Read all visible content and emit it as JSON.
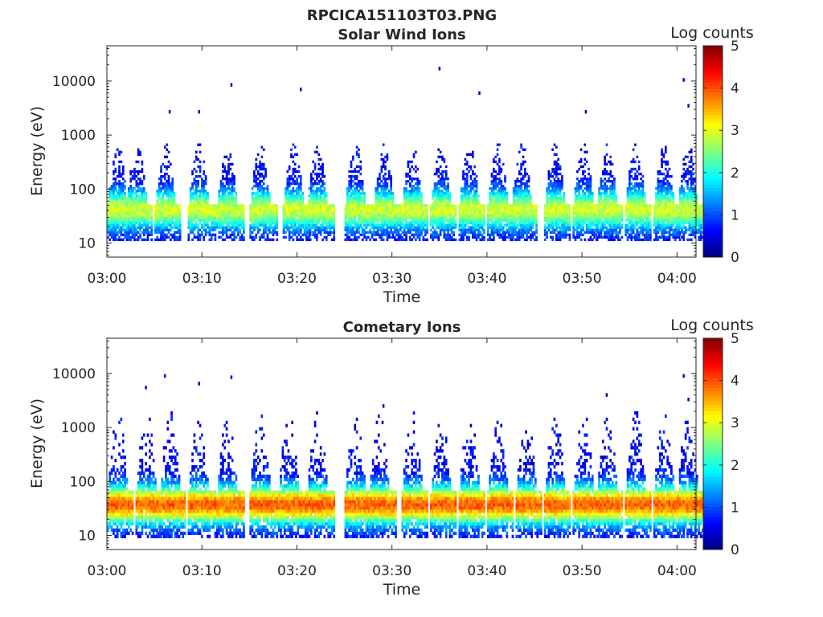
{
  "figure": {
    "title": "RPCICA151103T03.PNG"
  },
  "colors": {
    "colormap": "jet",
    "axis": "#262626",
    "background": "#ffffff"
  },
  "chart_data": [
    {
      "type": "heatmap",
      "title": "Solar Wind Ions",
      "xlabel": "Time",
      "ylabel": "Energy (eV)",
      "y_scale": "log",
      "ylim": [
        5.5,
        45000
      ],
      "xlim": [
        "03:00",
        "04:02"
      ],
      "x_ticks": [
        "03:00",
        "03:10",
        "03:20",
        "03:30",
        "03:40",
        "03:50",
        "04:00"
      ],
      "y_ticks": [
        {
          "value": 10,
          "label": "10"
        },
        {
          "value": 100,
          "label": "100"
        },
        {
          "value": 1000,
          "label": "1000"
        },
        {
          "value": 10000,
          "label": "10000"
        }
      ],
      "colorbar": {
        "label": "Log counts",
        "min": 0,
        "max": 5,
        "ticks": [
          "0",
          "1",
          "2",
          "3",
          "4",
          "5"
        ]
      },
      "sweep_period_minutes": 2.8,
      "sweep_starts_minutes": [
        0.0,
        2.0,
        5.0,
        8.5,
        11.5,
        15.0,
        18.5,
        21.0,
        25.0,
        28.0,
        31.0,
        34.0,
        37.0,
        40.0,
        42.5,
        46.0,
        49.0,
        51.5,
        54.5,
        57.5,
        60.0
      ],
      "sweep_energy_range_eV": [
        11,
        700
      ],
      "peak_energy_eV": 40,
      "peak_log_counts": 2.3,
      "sparse_high_energy_points": [
        {
          "time": "03:06.5",
          "energy": 2700,
          "log_counts": 0.4
        },
        {
          "time": "03:09.6",
          "energy": 2700,
          "log_counts": 0.4
        },
        {
          "time": "03:13.0",
          "energy": 8500,
          "log_counts": 0.5
        },
        {
          "time": "03:20.3",
          "energy": 7000,
          "log_counts": 0.4
        },
        {
          "time": "03:34.9",
          "energy": 17000,
          "log_counts": 0.5
        },
        {
          "time": "03:39.1",
          "energy": 6000,
          "log_counts": 0.4
        },
        {
          "time": "03:50.3",
          "energy": 2700,
          "log_counts": 0.4
        },
        {
          "time": "04:00.6",
          "energy": 10500,
          "log_counts": 0.5
        },
        {
          "time": "04:01.1",
          "energy": 3500,
          "log_counts": 0.4
        }
      ]
    },
    {
      "type": "heatmap",
      "title": "Cometary Ions",
      "xlabel": "Time",
      "ylabel": "Energy (eV)",
      "y_scale": "log",
      "ylim": [
        5.5,
        45000
      ],
      "xlim": [
        "03:00",
        "04:02"
      ],
      "x_ticks": [
        "03:00",
        "03:10",
        "03:20",
        "03:30",
        "03:40",
        "03:50",
        "04:00"
      ],
      "y_ticks": [
        {
          "value": 10,
          "label": "10"
        },
        {
          "value": 100,
          "label": "100"
        },
        {
          "value": 1000,
          "label": "1000"
        },
        {
          "value": 10000,
          "label": "10000"
        }
      ],
      "colorbar": {
        "label": "Log counts",
        "min": 0,
        "max": 5,
        "ticks": [
          "0",
          "1",
          "2",
          "3",
          "4",
          "5"
        ]
      },
      "sweep_period_minutes": 2.8,
      "sweep_starts_minutes": [
        0.0,
        3.0,
        5.5,
        8.5,
        11.5,
        15.0,
        18.0,
        21.0,
        25.0,
        27.5,
        31.0,
        34.0,
        37.0,
        40.0,
        43.0,
        46.0,
        49.0,
        51.5,
        54.5,
        57.5,
        60.0
      ],
      "sweep_energy_range_eV": [
        9,
        2000
      ],
      "peak_energy_eV": 35,
      "peak_log_counts": 3.3,
      "sparse_high_energy_points": [
        {
          "time": "03:04.0",
          "energy": 5500,
          "log_counts": 0.4
        },
        {
          "time": "03:06.0",
          "energy": 9000,
          "log_counts": 0.5
        },
        {
          "time": "03:09.6",
          "energy": 6500,
          "log_counts": 0.4
        },
        {
          "time": "03:13.0",
          "energy": 8500,
          "log_counts": 0.5
        },
        {
          "time": "03:29.0",
          "energy": 2500,
          "log_counts": 0.4
        },
        {
          "time": "03:52.5",
          "energy": 4000,
          "log_counts": 0.4
        },
        {
          "time": "04:00.6",
          "energy": 9000,
          "log_counts": 0.5
        },
        {
          "time": "04:01.1",
          "energy": 3300,
          "log_counts": 0.4
        }
      ]
    }
  ]
}
